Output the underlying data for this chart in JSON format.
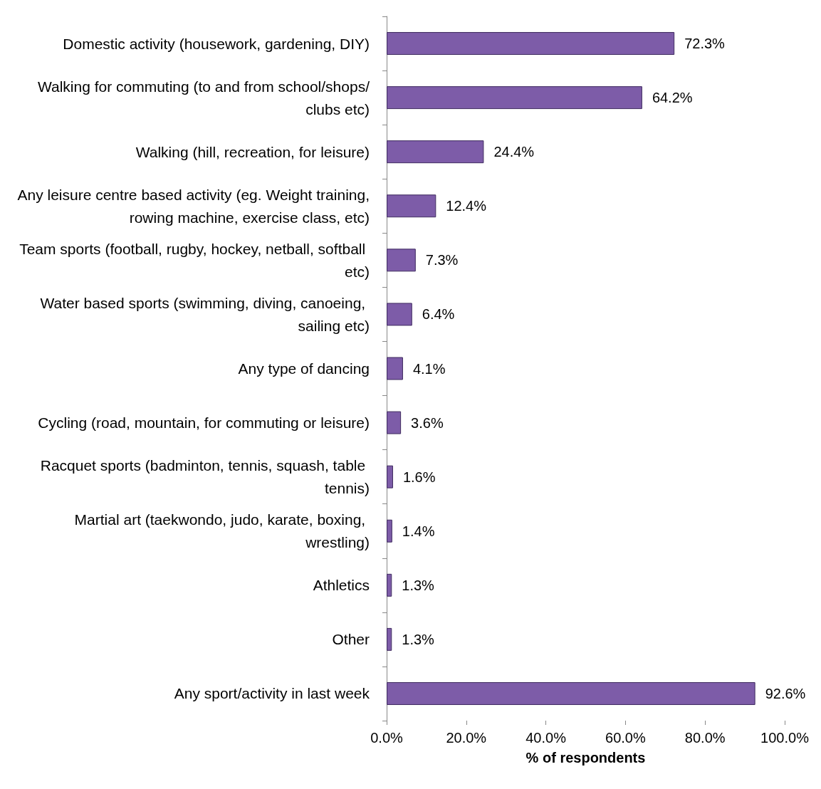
{
  "chart_data": {
    "type": "bar",
    "orientation": "horizontal",
    "xlabel": "% of respondents",
    "categories": [
      "Domestic activity (housework, gardening, DIY)",
      "Walking for commuting (to and from school/shops/clubs etc)",
      "Walking (hill, recreation, for leisure)",
      "Any leisure centre based activity (eg. Weight training, rowing machine, exercise class, etc)",
      "Team sports (football, rugby, hockey, netball, softball etc)",
      "Water based sports (swimming, diving, canoeing, sailing etc)",
      "Any type of dancing",
      "Cycling (road, mountain, for commuting or leisure)",
      "Racquet sports (badminton, tennis, squash, table tennis)",
      "Martial art (taekwondo, judo, karate, boxing, wrestling)",
      "Athletics",
      "Other",
      "Any sport/activity in last week"
    ],
    "values": [
      72.3,
      64.2,
      24.4,
      12.4,
      7.3,
      6.4,
      4.1,
      3.6,
      1.6,
      1.4,
      1.3,
      1.3,
      92.6
    ],
    "value_labels": [
      "72.3%",
      "64.2%",
      "24.4%",
      "12.4%",
      "7.3%",
      "6.4%",
      "4.1%",
      "3.6%",
      "1.6%",
      "1.4%",
      "1.3%",
      "1.3%",
      "92.6%"
    ],
    "color": "#7d5ca8",
    "xlim": [
      0,
      100
    ],
    "xticks": [
      {
        "value": 0,
        "label": "0.0%"
      },
      {
        "value": 20,
        "label": "20.0%"
      },
      {
        "value": 40,
        "label": "40.0%"
      },
      {
        "value": 60,
        "label": "60.0%"
      },
      {
        "value": 80,
        "label": "80.0%"
      },
      {
        "value": 100,
        "label": "100.0%"
      }
    ],
    "grid": false
  }
}
